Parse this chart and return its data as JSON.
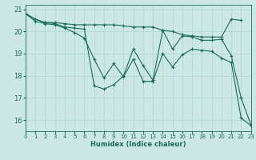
{
  "xlabel": "Humidex (Indice chaleur)",
  "bg_color": "#cce8e5",
  "line_color": "#1a6b5a",
  "grid_color": "#aed4cf",
  "xlim": [
    0,
    23
  ],
  "ylim": [
    15.5,
    21.2
  ],
  "yticks": [
    16,
    17,
    18,
    19,
    20,
    21
  ],
  "xticks": [
    0,
    1,
    2,
    3,
    4,
    5,
    6,
    7,
    8,
    9,
    10,
    11,
    12,
    13,
    14,
    15,
    16,
    17,
    18,
    19,
    20,
    21,
    22,
    23
  ],
  "series": [
    {
      "x": [
        0,
        1,
        2,
        3,
        4,
        5,
        6,
        7,
        8,
        9,
        10,
        11,
        12,
        13,
        14,
        15,
        16,
        17,
        18,
        19,
        20,
        21,
        22,
        23
      ],
      "y": [
        20.8,
        20.55,
        20.4,
        20.4,
        20.35,
        20.3,
        20.3,
        20.3,
        20.3,
        20.3,
        20.25,
        20.2,
        20.2,
        20.2,
        20.05,
        20.0,
        19.85,
        19.8,
        19.75,
        19.75,
        19.75,
        20.55,
        20.5,
        null
      ]
    },
    {
      "x": [
        0,
        1,
        2,
        3,
        4,
        5,
        6,
        7,
        8,
        9,
        10,
        11,
        12,
        13,
        14,
        15,
        16,
        17,
        18,
        19,
        20,
        21,
        22,
        23
      ],
      "y": [
        20.8,
        20.55,
        20.4,
        20.35,
        20.2,
        20.15,
        20.1,
        17.55,
        17.4,
        17.6,
        18.0,
        19.2,
        18.45,
        17.8,
        20.05,
        19.2,
        19.8,
        19.75,
        19.6,
        19.6,
        19.65,
        18.9,
        17.0,
        15.8
      ]
    },
    {
      "x": [
        0,
        1,
        2,
        3,
        4,
        5,
        6,
        7,
        8,
        9,
        10,
        11,
        12,
        13,
        14,
        15,
        16,
        17,
        18,
        19,
        20,
        21,
        22,
        23
      ],
      "y": [
        20.8,
        20.45,
        20.35,
        20.3,
        20.15,
        19.95,
        19.7,
        18.75,
        17.9,
        18.55,
        17.95,
        18.75,
        17.75,
        17.75,
        19.0,
        18.4,
        18.95,
        19.2,
        19.15,
        19.1,
        18.8,
        18.6,
        16.1,
        15.75
      ]
    }
  ]
}
